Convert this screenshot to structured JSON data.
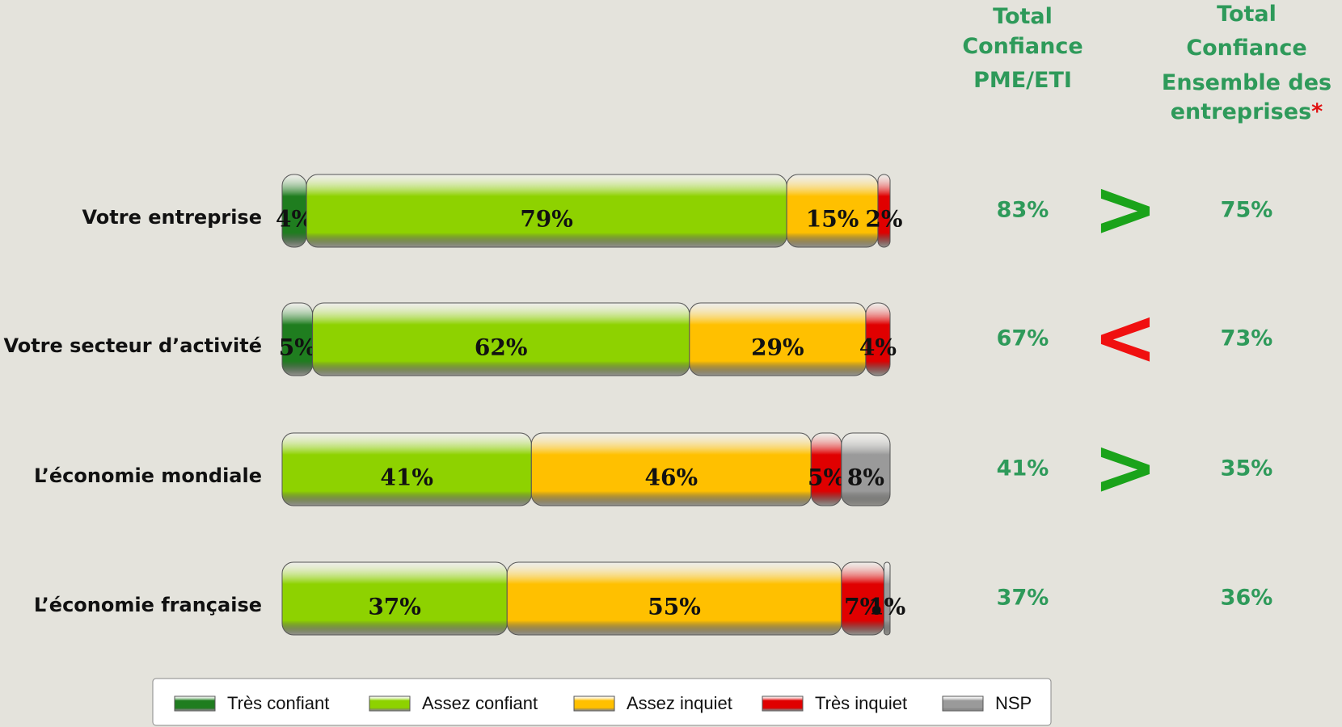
{
  "chart_data": {
    "type": "stacked-bar-horizontal",
    "categories": [
      "Votre entreprise",
      "Votre secteur d’activité",
      "L’économie mondiale",
      "L’économie française"
    ],
    "series": [
      {
        "name": "Très confiant",
        "color": "#1f7d1f",
        "values": [
          4,
          5,
          null,
          null
        ],
        "value_labels": [
          "4%",
          "5%",
          null,
          null
        ]
      },
      {
        "name": "Assez confiant",
        "color": "#8ed200",
        "values": [
          79,
          62,
          41,
          37
        ],
        "value_labels": [
          "79%",
          "62%",
          "41%",
          "37%"
        ]
      },
      {
        "name": "Assez inquiet",
        "color": "#ffc000",
        "values": [
          15,
          29,
          46,
          55
        ],
        "value_labels": [
          "15%",
          "29%",
          "46%",
          "55%"
        ]
      },
      {
        "name": "Très inquiet",
        "color": "#e00000",
        "values": [
          2,
          4,
          5,
          7
        ],
        "value_labels": [
          "2%",
          "4%",
          "5%",
          "7%"
        ]
      },
      {
        "name": "NSP",
        "color": "#9a9a9a",
        "values": [
          null,
          null,
          8,
          1
        ],
        "value_labels": [
          null,
          null,
          "8%",
          "1%"
        ]
      }
    ],
    "columns": [
      {
        "header": [
          "Total",
          "Confiance",
          "PME/ETI"
        ],
        "values": [
          83,
          67,
          41,
          37
        ],
        "value_labels": [
          "83%",
          "67%",
          "41%",
          "37%"
        ]
      },
      {
        "header": [
          "Total",
          "Confiance",
          "Ensemble des",
          "entreprises"
        ],
        "header_mark": "*",
        "values": [
          75,
          73,
          35,
          36
        ],
        "value_labels": [
          "75%",
          "73%",
          "35%",
          "36%"
        ]
      }
    ],
    "comparison": {
      "symbols": [
        ">",
        "<",
        ">",
        null
      ],
      "colors": [
        "#1aa31a",
        "#f01010",
        "#1aa31a",
        null
      ]
    },
    "legend": "bottom"
  }
}
